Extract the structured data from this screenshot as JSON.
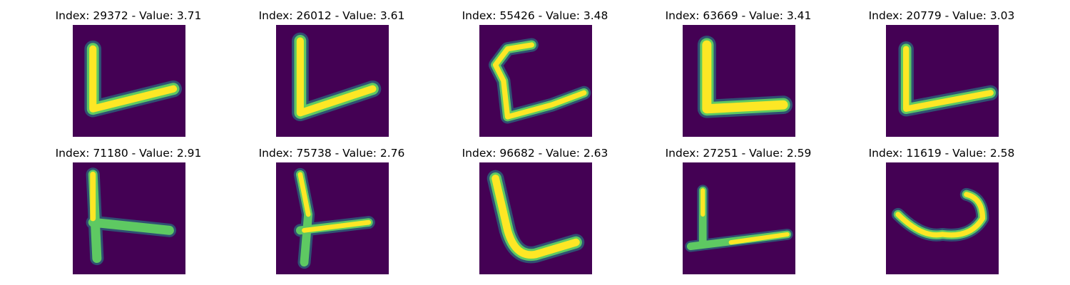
{
  "chart_data": [
    {
      "type": "image",
      "title": "Index: 29372 - Value: 3.71",
      "index": 29372,
      "value": 3.71,
      "image_background": "#440154"
    },
    {
      "type": "image",
      "title": "Index: 26012 - Value: 3.61",
      "index": 26012,
      "value": 3.61,
      "image_background": "#440154"
    },
    {
      "type": "image",
      "title": "Index: 55426 - Value: 3.48",
      "index": 55426,
      "value": 3.48,
      "image_background": "#440154"
    },
    {
      "type": "image",
      "title": "Index: 63669 - Value: 3.41",
      "index": 63669,
      "value": 3.41,
      "image_background": "#440154"
    },
    {
      "type": "image",
      "title": "Index: 20779 - Value: 3.03",
      "index": 20779,
      "value": 3.03,
      "image_background": "#440154"
    },
    {
      "type": "image",
      "title": "Index: 71180 - Value: 2.91",
      "index": 71180,
      "value": 2.91,
      "image_background": "#440154"
    },
    {
      "type": "image",
      "title": "Index: 75738 - Value: 2.76",
      "index": 75738,
      "value": 2.76,
      "image_background": "#440154"
    },
    {
      "type": "image",
      "title": "Index: 96682 - Value: 2.63",
      "index": 96682,
      "value": 2.63,
      "image_background": "#440154"
    },
    {
      "type": "image",
      "title": "Index: 27251 - Value: 2.59",
      "index": 27251,
      "value": 2.59,
      "image_background": "#440154"
    },
    {
      "type": "image",
      "title": "Index: 11619 - Value: 2.58",
      "index": 11619,
      "value": 2.58,
      "image_background": "#440154"
    }
  ],
  "colors": {
    "background": "#440154",
    "halo": "#21918c",
    "mid": "#5ec962",
    "stroke": "#fde725"
  }
}
